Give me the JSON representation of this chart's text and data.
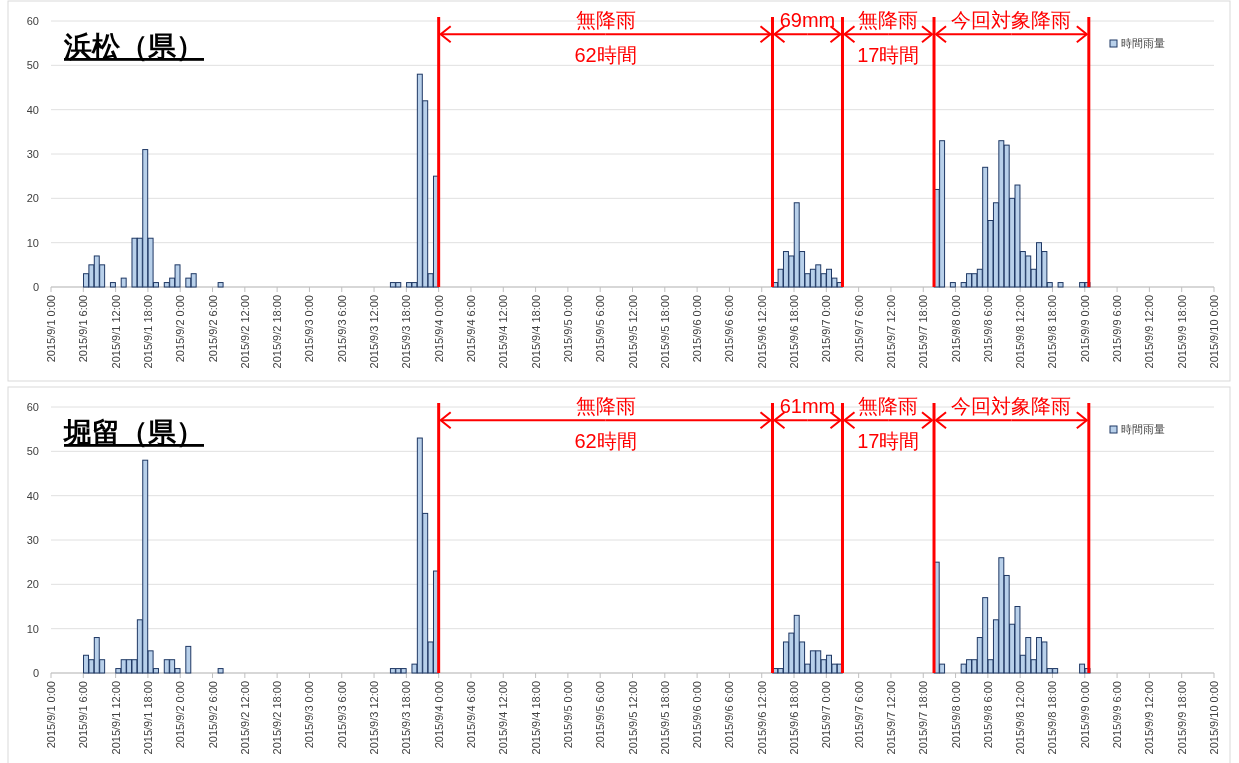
{
  "chart_data": [
    {
      "type": "bar",
      "title": "浜松（県）",
      "legend": "top right",
      "grid": "y",
      "ylim": [
        0,
        60
      ],
      "yticks": [
        0,
        10,
        20,
        30,
        40,
        50,
        60
      ],
      "xlim": [
        "2015-09-01T00:00",
        "2015-09-10T00:00"
      ],
      "xticks": [
        {
          "value": "2015-09-01T00:00",
          "label": "2015/9/1 0:00"
        },
        {
          "value": "2015-09-01T06:00",
          "label": "2015/9/1 6:00"
        },
        {
          "value": "2015-09-01T12:00",
          "label": "2015/9/1 12:00"
        },
        {
          "value": "2015-09-01T18:00",
          "label": "2015/9/1 18:00"
        },
        {
          "value": "2015-09-02T00:00",
          "label": "2015/9/2 0:00"
        },
        {
          "value": "2015-09-02T06:00",
          "label": "2015/9/2 6:00"
        },
        {
          "value": "2015-09-02T12:00",
          "label": "2015/9/2 12:00"
        },
        {
          "value": "2015-09-02T18:00",
          "label": "2015/9/2 18:00"
        },
        {
          "value": "2015-09-03T00:00",
          "label": "2015/9/3 0:00"
        },
        {
          "value": "2015-09-03T06:00",
          "label": "2015/9/3 6:00"
        },
        {
          "value": "2015-09-03T12:00",
          "label": "2015/9/3 12:00"
        },
        {
          "value": "2015-09-03T18:00",
          "label": "2015/9/3 18:00"
        },
        {
          "value": "2015-09-04T00:00",
          "label": "2015/9/4 0:00"
        },
        {
          "value": "2015-09-04T06:00",
          "label": "2015/9/4 6:00"
        },
        {
          "value": "2015-09-04T12:00",
          "label": "2015/9/4 12:00"
        },
        {
          "value": "2015-09-04T18:00",
          "label": "2015/9/4 18:00"
        },
        {
          "value": "2015-09-05T00:00",
          "label": "2015/9/5 0:00"
        },
        {
          "value": "2015-09-05T06:00",
          "label": "2015/9/5 6:00"
        },
        {
          "value": "2015-09-05T12:00",
          "label": "2015/9/5 12:00"
        },
        {
          "value": "2015-09-05T18:00",
          "label": "2015/9/5 18:00"
        },
        {
          "value": "2015-09-06T00:00",
          "label": "2015/9/6 0:00"
        },
        {
          "value": "2015-09-06T06:00",
          "label": "2015/9/6 6:00"
        },
        {
          "value": "2015-09-06T12:00",
          "label": "2015/9/6 12:00"
        },
        {
          "value": "2015-09-06T18:00",
          "label": "2015/9/6 18:00"
        },
        {
          "value": "2015-09-07T00:00",
          "label": "2015/9/7 0:00"
        },
        {
          "value": "2015-09-07T06:00",
          "label": "2015/9/7 6:00"
        },
        {
          "value": "2015-09-07T12:00",
          "label": "2015/9/7 12:00"
        },
        {
          "value": "2015-09-07T18:00",
          "label": "2015/9/7 18:00"
        },
        {
          "value": "2015-09-08T00:00",
          "label": "2015/9/8 0:00"
        },
        {
          "value": "2015-09-08T06:00",
          "label": "2015/9/8 6:00"
        },
        {
          "value": "2015-09-08T12:00",
          "label": "2015/9/8 12:00"
        },
        {
          "value": "2015-09-08T18:00",
          "label": "2015/9/8 18:00"
        },
        {
          "value": "2015-09-09T00:00",
          "label": "2015/9/9 0:00"
        },
        {
          "value": "2015-09-09T06:00",
          "label": "2015/9/9 6:00"
        },
        {
          "value": "2015-09-09T12:00",
          "label": "2015/9/9 12:00"
        },
        {
          "value": "2015-09-09T18:00",
          "label": "2015/9/9 18:00"
        },
        {
          "value": "2015-09-10T00:00",
          "label": "2015/9/10 0:00"
        }
      ],
      "series": [
        {
          "name": "時間雨量",
          "color": "#b8d0ea",
          "x": [
            "2015-09-01T06:00",
            "2015-09-01T07:00",
            "2015-09-01T08:00",
            "2015-09-01T09:00",
            "2015-09-01T11:00",
            "2015-09-01T13:00",
            "2015-09-01T15:00",
            "2015-09-01T16:00",
            "2015-09-01T17:00",
            "2015-09-01T18:00",
            "2015-09-01T19:00",
            "2015-09-01T21:00",
            "2015-09-01T22:00",
            "2015-09-01T23:00",
            "2015-09-02T01:00",
            "2015-09-02T02:00",
            "2015-09-02T07:00",
            "2015-09-03T15:00",
            "2015-09-03T16:00",
            "2015-09-03T18:00",
            "2015-09-03T19:00",
            "2015-09-03T20:00",
            "2015-09-03T21:00",
            "2015-09-03T22:00",
            "2015-09-03T23:00",
            "2015-09-06T14:00",
            "2015-09-06T15:00",
            "2015-09-06T16:00",
            "2015-09-06T17:00",
            "2015-09-06T18:00",
            "2015-09-06T19:00",
            "2015-09-06T20:00",
            "2015-09-06T21:00",
            "2015-09-06T22:00",
            "2015-09-06T23:00",
            "2015-09-07T00:00",
            "2015-09-07T01:00",
            "2015-09-07T02:00",
            "2015-09-07T20:00",
            "2015-09-07T21:00",
            "2015-09-07T23:00",
            "2015-09-08T01:00",
            "2015-09-08T02:00",
            "2015-09-08T03:00",
            "2015-09-08T04:00",
            "2015-09-08T05:00",
            "2015-09-08T06:00",
            "2015-09-08T07:00",
            "2015-09-08T08:00",
            "2015-09-08T09:00",
            "2015-09-08T10:00",
            "2015-09-08T11:00",
            "2015-09-08T12:00",
            "2015-09-08T13:00",
            "2015-09-08T14:00",
            "2015-09-08T15:00",
            "2015-09-08T16:00",
            "2015-09-08T17:00",
            "2015-09-08T19:00",
            "2015-09-08T23:00",
            "2015-09-09T00:00"
          ],
          "values": [
            3,
            5,
            7,
            5,
            1,
            2,
            11,
            11,
            31,
            11,
            1,
            1,
            2,
            5,
            2,
            3,
            1,
            1,
            1,
            1,
            1,
            48,
            42,
            3,
            25,
            1,
            4,
            8,
            7,
            19,
            8,
            3,
            4,
            5,
            3,
            4,
            2,
            1,
            22,
            33,
            1,
            1,
            3,
            3,
            4,
            27,
            15,
            19,
            33,
            32,
            20,
            23,
            8,
            7,
            4,
            10,
            8,
            1,
            1,
            1,
            1
          ]
        }
      ],
      "ref_lines": [
        {
          "axis": "x",
          "value": "2015-09-04T00:00",
          "color": "#ff0000"
        },
        {
          "axis": "x",
          "value": "2015-09-06T14:00",
          "color": "#ff0000"
        },
        {
          "axis": "x",
          "value": "2015-09-07T03:00",
          "color": "#ff0000"
        },
        {
          "axis": "x",
          "value": "2015-09-07T20:00",
          "color": "#ff0000"
        },
        {
          "axis": "x",
          "value": "2015-09-09T00:45",
          "color": "#ff0000"
        }
      ],
      "annotations": [
        {
          "text": "無降雨\n62時間",
          "x": "2015-09-04T00:00",
          "y": 57
        },
        {
          "text": "69mm",
          "x": "2015-09-06T14:00",
          "y": 57
        },
        {
          "text": "無降雨\n17時間",
          "x": "2015-09-07T03:00",
          "y": 57
        },
        {
          "text": "今回対象降雨",
          "x": "2015-09-07T20:00",
          "y": 57
        }
      ]
    },
    {
      "type": "bar",
      "title": "堀留（県）",
      "legend": "top right",
      "grid": "y",
      "ylim": [
        0,
        60
      ],
      "yticks": [
        0,
        10,
        20,
        30,
        40,
        50,
        60
      ],
      "xlim": [
        "2015-09-01T00:00",
        "2015-09-10T00:00"
      ],
      "xticks": [
        {
          "value": "2015-09-01T00:00",
          "label": "2015/9/1 0:00"
        },
        {
          "value": "2015-09-01T06:00",
          "label": "2015/9/1 6:00"
        },
        {
          "value": "2015-09-01T12:00",
          "label": "2015/9/1 12:00"
        },
        {
          "value": "2015-09-01T18:00",
          "label": "2015/9/1 18:00"
        },
        {
          "value": "2015-09-02T00:00",
          "label": "2015/9/2 0:00"
        },
        {
          "value": "2015-09-02T06:00",
          "label": "2015/9/2 6:00"
        },
        {
          "value": "2015-09-02T12:00",
          "label": "2015/9/2 12:00"
        },
        {
          "value": "2015-09-02T18:00",
          "label": "2015/9/2 18:00"
        },
        {
          "value": "2015-09-03T00:00",
          "label": "2015/9/3 0:00"
        },
        {
          "value": "2015-09-03T06:00",
          "label": "2015/9/3 6:00"
        },
        {
          "value": "2015-09-03T12:00",
          "label": "2015/9/3 12:00"
        },
        {
          "value": "2015-09-03T18:00",
          "label": "2015/9/3 18:00"
        },
        {
          "value": "2015-09-04T00:00",
          "label": "2015/9/4 0:00"
        },
        {
          "value": "2015-09-04T06:00",
          "label": "2015/9/4 6:00"
        },
        {
          "value": "2015-09-04T12:00",
          "label": "2015/9/4 12:00"
        },
        {
          "value": "2015-09-04T18:00",
          "label": "2015/9/4 18:00"
        },
        {
          "value": "2015-09-05T00:00",
          "label": "2015/9/5 0:00"
        },
        {
          "value": "2015-09-05T06:00",
          "label": "2015/9/5 6:00"
        },
        {
          "value": "2015-09-05T12:00",
          "label": "2015/9/5 12:00"
        },
        {
          "value": "2015-09-05T18:00",
          "label": "2015/9/5 18:00"
        },
        {
          "value": "2015-09-06T00:00",
          "label": "2015/9/6 0:00"
        },
        {
          "value": "2015-09-06T06:00",
          "label": "2015/9/6 6:00"
        },
        {
          "value": "2015-09-06T12:00",
          "label": "2015/9/6 12:00"
        },
        {
          "value": "2015-09-06T18:00",
          "label": "2015/9/6 18:00"
        },
        {
          "value": "2015-09-07T00:00",
          "label": "2015/9/7 0:00"
        },
        {
          "value": "2015-09-07T06:00",
          "label": "2015/9/7 6:00"
        },
        {
          "value": "2015-09-07T12:00",
          "label": "2015/9/7 12:00"
        },
        {
          "value": "2015-09-07T18:00",
          "label": "2015/9/7 18:00"
        },
        {
          "value": "2015-09-08T00:00",
          "label": "2015/9/8 0:00"
        },
        {
          "value": "2015-09-08T06:00",
          "label": "2015/9/8 6:00"
        },
        {
          "value": "2015-09-08T12:00",
          "label": "2015/9/8 12:00"
        },
        {
          "value": "2015-09-08T18:00",
          "label": "2015/9/8 18:00"
        },
        {
          "value": "2015-09-09T00:00",
          "label": "2015/9/9 0:00"
        },
        {
          "value": "2015-09-09T06:00",
          "label": "2015/9/9 6:00"
        },
        {
          "value": "2015-09-09T12:00",
          "label": "2015/9/9 12:00"
        },
        {
          "value": "2015-09-09T18:00",
          "label": "2015/9/9 18:00"
        },
        {
          "value": "2015-09-10T00:00",
          "label": "2015/9/10 0:00"
        }
      ],
      "series": [
        {
          "name": "時間雨量",
          "color": "#b8d0ea",
          "x": [
            "2015-09-01T06:00",
            "2015-09-01T07:00",
            "2015-09-01T08:00",
            "2015-09-01T09:00",
            "2015-09-01T12:00",
            "2015-09-01T13:00",
            "2015-09-01T14:00",
            "2015-09-01T15:00",
            "2015-09-01T16:00",
            "2015-09-01T17:00",
            "2015-09-01T18:00",
            "2015-09-01T19:00",
            "2015-09-01T21:00",
            "2015-09-01T22:00",
            "2015-09-01T23:00",
            "2015-09-02T01:00",
            "2015-09-02T07:00",
            "2015-09-03T15:00",
            "2015-09-03T16:00",
            "2015-09-03T17:00",
            "2015-09-03T19:00",
            "2015-09-03T20:00",
            "2015-09-03T21:00",
            "2015-09-03T22:00",
            "2015-09-03T23:00",
            "2015-09-06T14:00",
            "2015-09-06T15:00",
            "2015-09-06T16:00",
            "2015-09-06T17:00",
            "2015-09-06T18:00",
            "2015-09-06T19:00",
            "2015-09-06T20:00",
            "2015-09-06T21:00",
            "2015-09-06T22:00",
            "2015-09-06T23:00",
            "2015-09-07T00:00",
            "2015-09-07T01:00",
            "2015-09-07T02:00",
            "2015-09-07T20:00",
            "2015-09-07T21:00",
            "2015-09-08T01:00",
            "2015-09-08T02:00",
            "2015-09-08T03:00",
            "2015-09-08T04:00",
            "2015-09-08T05:00",
            "2015-09-08T06:00",
            "2015-09-08T07:00",
            "2015-09-08T08:00",
            "2015-09-08T09:00",
            "2015-09-08T10:00",
            "2015-09-08T11:00",
            "2015-09-08T12:00",
            "2015-09-08T13:00",
            "2015-09-08T14:00",
            "2015-09-08T15:00",
            "2015-09-08T16:00",
            "2015-09-08T17:00",
            "2015-09-08T18:00",
            "2015-09-08T23:00",
            "2015-09-09T00:00"
          ],
          "values": [
            4,
            3,
            8,
            3,
            1,
            3,
            3,
            3,
            12,
            48,
            5,
            1,
            3,
            3,
            1,
            6,
            1,
            1,
            1,
            1,
            2,
            53,
            36,
            7,
            23,
            1,
            1,
            7,
            9,
            13,
            7,
            2,
            5,
            5,
            3,
            4,
            2,
            2,
            25,
            2,
            2,
            3,
            3,
            8,
            17,
            3,
            12,
            26,
            22,
            11,
            15,
            4,
            8,
            3,
            8,
            7,
            1,
            1,
            2,
            1
          ]
        }
      ],
      "ref_lines": [
        {
          "axis": "x",
          "value": "2015-09-04T00:00",
          "color": "#ff0000"
        },
        {
          "axis": "x",
          "value": "2015-09-06T14:00",
          "color": "#ff0000"
        },
        {
          "axis": "x",
          "value": "2015-09-07T03:00",
          "color": "#ff0000"
        },
        {
          "axis": "x",
          "value": "2015-09-07T20:00",
          "color": "#ff0000"
        },
        {
          "axis": "x",
          "value": "2015-09-09T00:45",
          "color": "#ff0000"
        }
      ],
      "annotations": [
        {
          "text": "無降雨\n62時間",
          "x": "2015-09-04T00:00",
          "y": 57
        },
        {
          "text": "61mm",
          "x": "2015-09-06T14:00",
          "y": 57
        },
        {
          "text": "無降雨\n17時間",
          "x": "2015-09-07T03:00",
          "y": 57
        },
        {
          "text": "今回対象降雨",
          "x": "2015-09-07T20:00",
          "y": 57
        }
      ]
    }
  ]
}
